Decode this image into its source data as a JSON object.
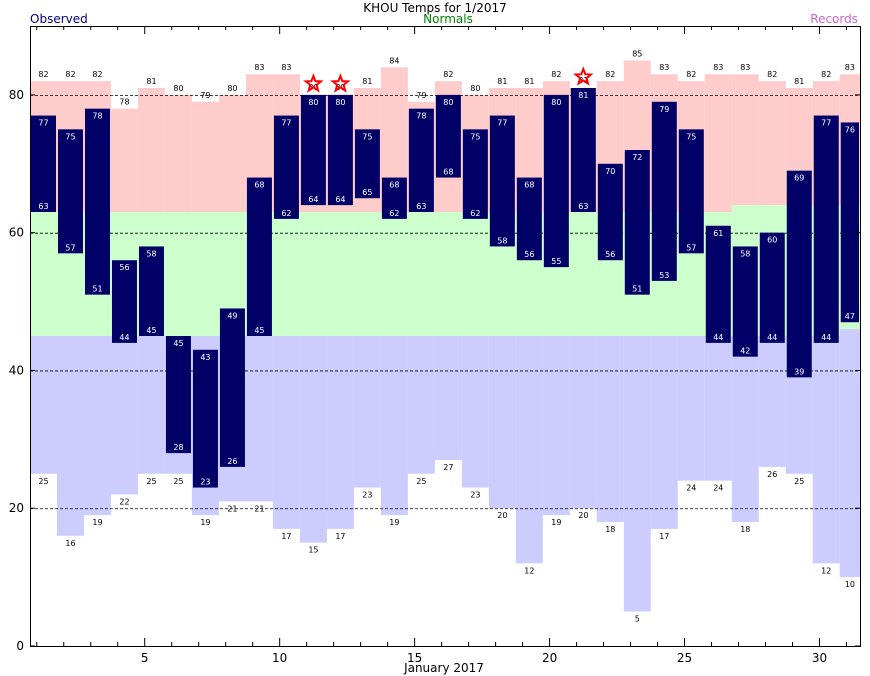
{
  "title": "KHOU Temps for  1/2017",
  "legend": {
    "observed": "Observed",
    "normals": "Normals",
    "records": "Records"
  },
  "colors": {
    "observed": "#000066",
    "observed_text": "#ffffff",
    "normal_band": "#ccffcc",
    "record_high_band": "#ffcccc",
    "record_low_band": "#ccccff",
    "record_star": "#ff0000",
    "title_observed": "#000080",
    "title_normals": "#008000",
    "title_records": "#cc66cc"
  },
  "chart_data": {
    "type": "bar",
    "xlabel": "January 2017",
    "ylabel": "",
    "ylim": [
      0,
      90
    ],
    "yticks": [
      0,
      20,
      40,
      60,
      80
    ],
    "xticks": [
      5,
      10,
      15,
      20,
      25,
      30
    ],
    "grid": "dashed at 20, 40, 60, 80",
    "days": [
      1,
      2,
      3,
      4,
      5,
      6,
      7,
      8,
      9,
      10,
      11,
      12,
      13,
      14,
      15,
      16,
      17,
      18,
      19,
      20,
      21,
      22,
      23,
      24,
      25,
      26,
      27,
      28,
      29,
      30,
      31
    ],
    "obs_high": [
      77,
      75,
      78,
      56,
      58,
      45,
      43,
      49,
      68,
      77,
      80,
      80,
      75,
      68,
      78,
      80,
      75,
      77,
      68,
      80,
      81,
      70,
      72,
      79,
      75,
      61,
      58,
      60,
      69,
      77,
      76
    ],
    "obs_low": [
      63,
      57,
      51,
      44,
      45,
      28,
      23,
      26,
      45,
      62,
      64,
      64,
      65,
      62,
      63,
      68,
      62,
      58,
      56,
      55,
      63,
      56,
      51,
      53,
      57,
      44,
      42,
      44,
      39,
      44,
      47
    ],
    "normal_high": [
      63,
      63,
      63,
      63,
      63,
      63,
      63,
      63,
      63,
      63,
      63,
      63,
      63,
      63,
      63,
      63,
      63,
      63,
      63,
      63,
      63,
      63,
      63,
      63,
      63,
      63,
      64,
      64,
      64,
      64,
      64
    ],
    "normal_low": [
      45,
      45,
      45,
      45,
      45,
      45,
      45,
      45,
      45,
      45,
      45,
      45,
      45,
      45,
      45,
      45,
      45,
      45,
      45,
      45,
      45,
      45,
      45,
      45,
      45,
      45,
      45,
      45,
      45,
      45,
      46
    ],
    "record_high": [
      82,
      82,
      82,
      78,
      81,
      80,
      79,
      80,
      83,
      83,
      80,
      80,
      81,
      84,
      79,
      82,
      80,
      81,
      81,
      82,
      81,
      82,
      85,
      83,
      82,
      83,
      83,
      82,
      81,
      82,
      83
    ],
    "record_low": [
      25,
      16,
      19,
      22,
      25,
      25,
      19,
      21,
      21,
      17,
      15,
      17,
      23,
      19,
      25,
      27,
      23,
      20,
      12,
      19,
      20,
      18,
      5,
      17,
      24,
      24,
      18,
      26,
      25,
      12,
      10
    ],
    "record_set_days": [
      11,
      12,
      21
    ]
  }
}
